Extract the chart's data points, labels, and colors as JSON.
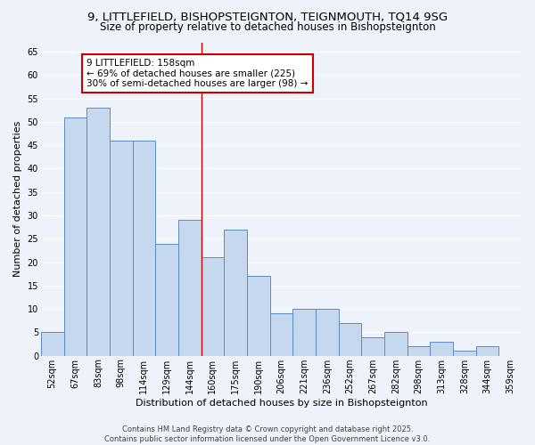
{
  "title1": "9, LITTLEFIELD, BISHOPSTEIGNTON, TEIGNMOUTH, TQ14 9SG",
  "title2": "Size of property relative to detached houses in Bishopsteignton",
  "xlabel": "Distribution of detached houses by size in Bishopsteignton",
  "ylabel": "Number of detached properties",
  "categories": [
    "52sqm",
    "67sqm",
    "83sqm",
    "98sqm",
    "114sqm",
    "129sqm",
    "144sqm",
    "160sqm",
    "175sqm",
    "190sqm",
    "206sqm",
    "221sqm",
    "236sqm",
    "252sqm",
    "267sqm",
    "282sqm",
    "298sqm",
    "313sqm",
    "328sqm",
    "344sqm",
    "359sqm"
  ],
  "values": [
    5,
    51,
    53,
    46,
    46,
    24,
    29,
    21,
    27,
    17,
    9,
    10,
    10,
    7,
    4,
    5,
    2,
    3,
    1,
    2,
    0
  ],
  "bar_color": "#c5d8ee",
  "bar_edge_color": "#5b8cc4",
  "background_color": "#edf2fb",
  "grid_color": "#ffffff",
  "vline_color": "#cc0000",
  "vline_index": 7,
  "annotation_text": "9 LITTLEFIELD: 158sqm\n← 69% of detached houses are smaller (225)\n30% of semi-detached houses are larger (98) →",
  "annotation_box_edgecolor": "#cc0000",
  "ylim": [
    0,
    67
  ],
  "yticks": [
    0,
    5,
    10,
    15,
    20,
    25,
    30,
    35,
    40,
    45,
    50,
    55,
    60,
    65
  ],
  "footer": "Contains HM Land Registry data © Crown copyright and database right 2025.\nContains public sector information licensed under the Open Government Licence v3.0.",
  "title_fontsize": 9.5,
  "subtitle_fontsize": 8.5,
  "ylabel_fontsize": 8,
  "xlabel_fontsize": 8,
  "tick_fontsize": 7,
  "annotation_fontsize": 7.5,
  "footer_fontsize": 6
}
